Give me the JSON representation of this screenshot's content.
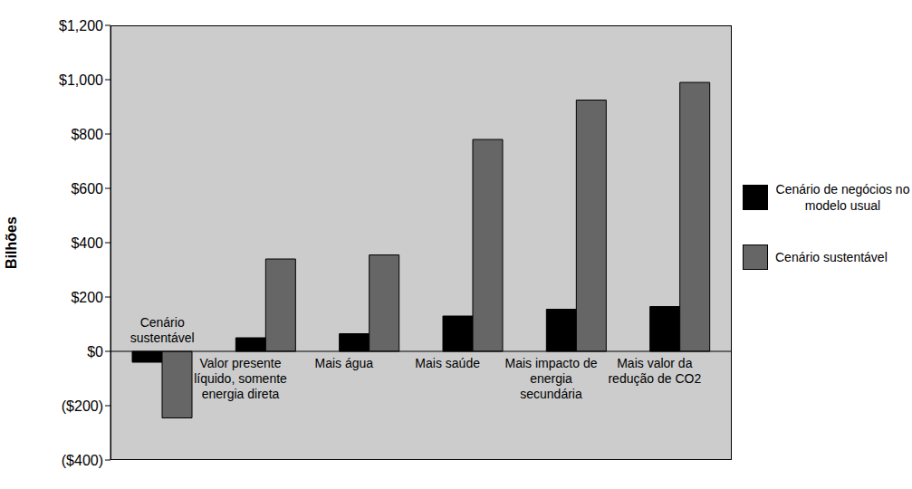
{
  "chart_data": {
    "type": "bar",
    "y_label": "Bilhões",
    "categories": [
      "Cenário sustentável",
      "Valor presente líquido, somente energia direta",
      "Mais água",
      "Mais saúde",
      "Mais impacto de energia secundária",
      "Mais valor da redução de CO2"
    ],
    "series": [
      {
        "name": "Cenário de negócios no modelo usual",
        "color": "#000000",
        "values": [
          -40,
          50,
          65,
          130,
          155,
          165
        ]
      },
      {
        "name": "Cenário sustentável",
        "color": "#666666",
        "values": [
          -245,
          340,
          355,
          780,
          925,
          990
        ]
      }
    ],
    "ylim": [
      -400,
      1200
    ],
    "yticks": [
      {
        "value": -400,
        "label": "($400)"
      },
      {
        "value": -200,
        "label": "($200)"
      },
      {
        "value": 0,
        "label": "$0"
      },
      {
        "value": 200,
        "label": "$200"
      },
      {
        "value": 400,
        "label": "$400"
      },
      {
        "value": 600,
        "label": "$600"
      },
      {
        "value": 800,
        "label": "$800"
      },
      {
        "value": 1000,
        "label": "$1,000"
      },
      {
        "value": 1200,
        "label": "$1,200"
      }
    ],
    "grid": false,
    "legend": "right"
  }
}
